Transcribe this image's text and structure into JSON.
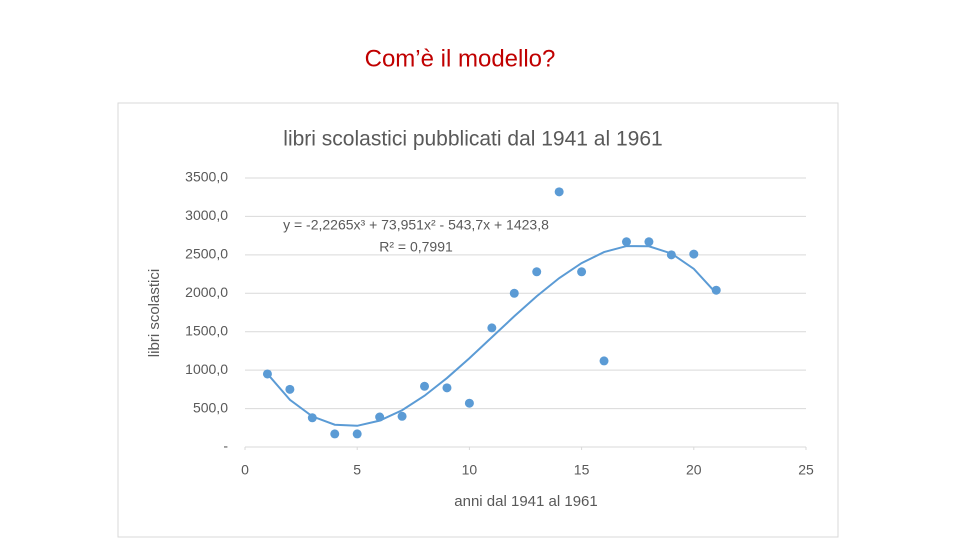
{
  "slide": {
    "title": "Com’è il modello?"
  },
  "chart_data": {
    "type": "scatter",
    "title": "libri scolastici pubblicati dal 1941 al 1961",
    "x_label": "anni dal 1941 al 1961",
    "y_label": "libri scolastici",
    "annotations": [
      "y = -2,2265x³ + 73,951x² - 543,7x + 1423,8",
      "R² = 0,7991"
    ],
    "series": [
      {
        "color": "#5b9bd5",
        "x": [
          1,
          2,
          3,
          4,
          5,
          6,
          7,
          8,
          9,
          10,
          11,
          12,
          13,
          14,
          15,
          16,
          17,
          18,
          19,
          20,
          21
        ],
        "values": [
          950,
          750,
          380,
          170,
          170,
          390,
          400,
          790,
          770,
          570,
          1550,
          2000,
          2280,
          3320,
          2280,
          1120,
          2670,
          2670,
          2500,
          2510,
          2040
        ]
      }
    ],
    "trendline": {
      "color": "#5b9bd5",
      "x": [
        1,
        2,
        3,
        4,
        5,
        6,
        7,
        8,
        9,
        10,
        11,
        12,
        13,
        14,
        15,
        16,
        17,
        18,
        19,
        20,
        21
      ],
      "values": [
        952,
        614,
        398,
        290,
        276,
        343,
        478,
        667,
        897,
        1155,
        1428,
        1701,
        1962,
        2197,
        2393,
        2536,
        2614,
        2612,
        2518,
        2318,
        1999
      ]
    },
    "xlim": [
      0,
      25
    ],
    "xticks": [
      0,
      5,
      10,
      15,
      20,
      25
    ],
    "ylim": [
      0,
      3500
    ],
    "yticks": [
      {
        "value": 0,
        "label": "-"
      },
      {
        "value": 500,
        "label": "500,0"
      },
      {
        "value": 1000,
        "label": "1000,0"
      },
      {
        "value": 1500,
        "label": "1500,0"
      },
      {
        "value": 2000,
        "label": "2000,0"
      },
      {
        "value": 2500,
        "label": "2500,0"
      },
      {
        "value": 3000,
        "label": "3000,0"
      },
      {
        "value": 3500,
        "label": "3500,0"
      }
    ],
    "grid": true
  }
}
